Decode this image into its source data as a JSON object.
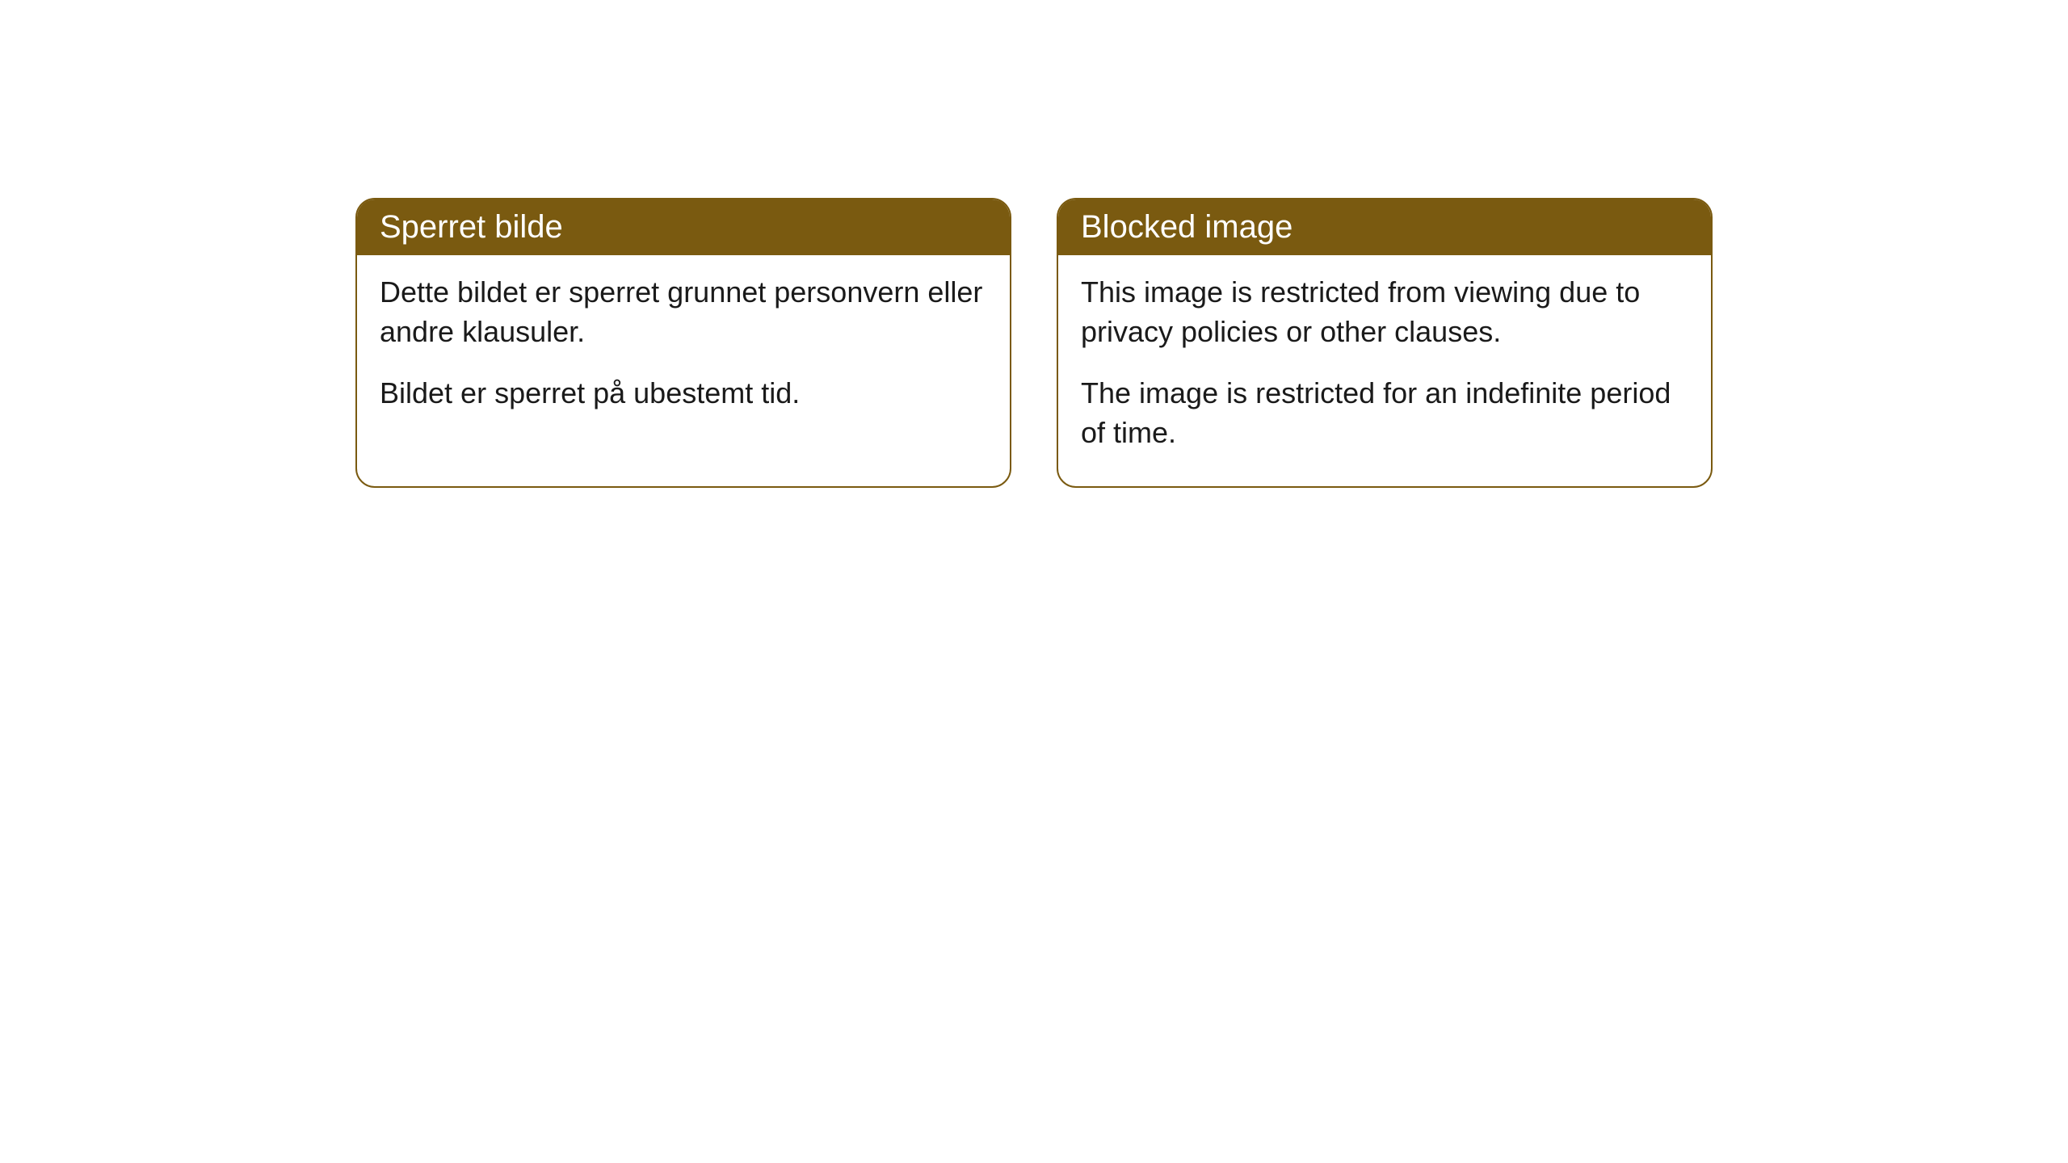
{
  "cards": [
    {
      "title": "Sperret bilde",
      "paragraph1": "Dette bildet er sperret grunnet personvern eller andre klausuler.",
      "paragraph2": "Bildet er sperret på ubestemt tid."
    },
    {
      "title": "Blocked image",
      "paragraph1": "This image is restricted from viewing due to privacy policies or other clauses.",
      "paragraph2": "The image is restricted for an indefinite period of time."
    }
  ],
  "style": {
    "header_background": "#7a5a10",
    "header_text_color": "#ffffff",
    "border_color": "#7a5a10",
    "body_text_color": "#1a1a1a",
    "card_background": "#ffffff",
    "page_background": "#ffffff",
    "border_radius": 24,
    "title_fontsize": 40,
    "body_fontsize": 36
  }
}
